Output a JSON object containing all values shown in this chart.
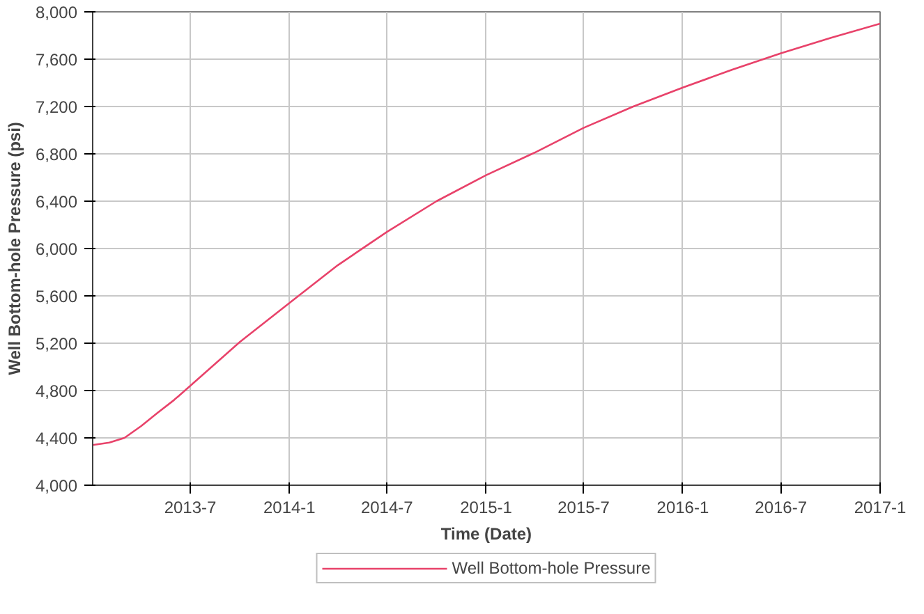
{
  "chart_data": {
    "type": "line",
    "xlabel": "Time (Date)",
    "ylabel": "Well Bottom-hole Pressure (psi)",
    "x": [
      "2013-01",
      "2013-02",
      "2013-03",
      "2013-04",
      "2013-05",
      "2013-06",
      "2013-07",
      "2013-10",
      "2014-01",
      "2014-04",
      "2014-07",
      "2014-10",
      "2015-01",
      "2015-04",
      "2015-07",
      "2015-10",
      "2016-01",
      "2016-04",
      "2016-07",
      "2016-10",
      "2017-01"
    ],
    "series": [
      {
        "name": "Well Bottom-hole Pressure",
        "color": "#e8426a",
        "values": [
          4340,
          4360,
          4400,
          4500,
          4610,
          4720,
          4840,
          5210,
          5540,
          5860,
          6140,
          6400,
          6620,
          6810,
          7020,
          7200,
          7360,
          7510,
          7650,
          7780,
          7900
        ]
      }
    ],
    "xlim": [
      "2013-01",
      "2017-01"
    ],
    "xticks": [
      {
        "value": "2013-07",
        "label": "2013-7"
      },
      {
        "value": "2014-01",
        "label": "2014-1"
      },
      {
        "value": "2014-07",
        "label": "2014-7"
      },
      {
        "value": "2015-01",
        "label": "2015-1"
      },
      {
        "value": "2015-07",
        "label": "2015-7"
      },
      {
        "value": "2016-01",
        "label": "2016-1"
      },
      {
        "value": "2016-07",
        "label": "2016-7"
      },
      {
        "value": "2017-01",
        "label": "2017-1"
      }
    ],
    "ylim": [
      4000,
      8000
    ],
    "yticks": [
      {
        "value": 4000,
        "label": "4,000"
      },
      {
        "value": 4400,
        "label": "4,400"
      },
      {
        "value": 4800,
        "label": "4,800"
      },
      {
        "value": 5200,
        "label": "5,200"
      },
      {
        "value": 5600,
        "label": "5,600"
      },
      {
        "value": 6000,
        "label": "6,000"
      },
      {
        "value": 6400,
        "label": "6,400"
      },
      {
        "value": 6800,
        "label": "6,800"
      },
      {
        "value": 7200,
        "label": "7,200"
      },
      {
        "value": 7600,
        "label": "7,600"
      },
      {
        "value": 8000,
        "label": "8,000"
      }
    ],
    "grid": true,
    "legend": "bottom",
    "line_style": "solid",
    "marker": "none"
  }
}
